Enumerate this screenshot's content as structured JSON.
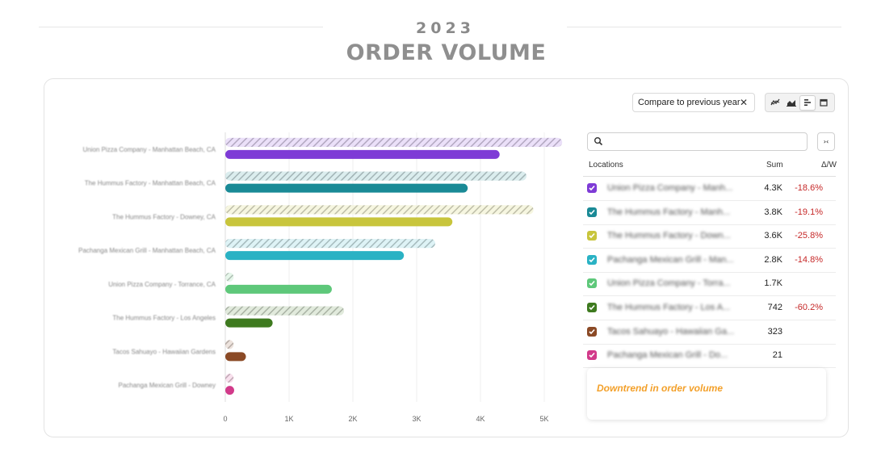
{
  "header": {
    "year": "2023",
    "title": "ORDER VOLUME"
  },
  "toolbar": {
    "compare_label": "Compare to previous year",
    "close_glyph": "✕",
    "view_buttons": [
      {
        "name": "line-chart-icon",
        "active": false
      },
      {
        "name": "area-chart-icon",
        "active": false
      },
      {
        "name": "bar-chart-icon",
        "active": true
      },
      {
        "name": "calendar-icon",
        "active": false
      }
    ]
  },
  "search": {
    "placeholder": ""
  },
  "table": {
    "headers": {
      "location": "Locations",
      "sum": "Sum",
      "delta": "Δ/W"
    },
    "rows": [
      {
        "name": "Union Pizza Company - Manh...",
        "sum": "4.3K",
        "delta": "-18.6%",
        "color": "#7e3bd6"
      },
      {
        "name": "The Hummus Factory - Manh...",
        "sum": "3.8K",
        "delta": "-19.1%",
        "color": "#1a8a96"
      },
      {
        "name": "The Hummus Factory - Down...",
        "sum": "3.6K",
        "delta": "-25.8%",
        "color": "#c8c53c"
      },
      {
        "name": "Pachanga Mexican Grill - Man...",
        "sum": "2.8K",
        "delta": "-14.8%",
        "color": "#2ab2c4"
      },
      {
        "name": "Union Pizza Company - Torra...",
        "sum": "1.7K",
        "delta": "",
        "color": "#5ec87a"
      },
      {
        "name": "The Hummus Factory - Los A...",
        "sum": "742",
        "delta": "-60.2%",
        "color": "#3e7a1f"
      },
      {
        "name": "Tacos Sahuayo - Hawaiian Ga...",
        "sum": "323",
        "delta": "",
        "color": "#8b4a26"
      },
      {
        "name": "Pachanga Mexican Grill - Do...",
        "sum": "21",
        "delta": "",
        "color": "#d23a8a"
      }
    ]
  },
  "note": {
    "text": "Downtrend in order volume"
  },
  "chart_data": {
    "type": "bar",
    "orientation": "horizontal",
    "categories": [
      "Union Pizza Company - Manhattan Beach, CA",
      "The Hummus Factory - Manhattan Beach, CA",
      "The Hummus Factory - Downey, CA",
      "Pachanga Mexican Grill - Manhattan Beach, CA",
      "Union Pizza Company - Torrance, CA",
      "The Hummus Factory - Los Angeles",
      "Tacos Sahuayo - Hawaiian Gardens",
      "Pachanga Mexican Grill - Downey"
    ],
    "series": [
      {
        "values": [
          4300,
          3800,
          3560,
          2800,
          1670,
          742,
          323,
          21
        ],
        "colors": [
          "#7e3bd6",
          "#1a8a96",
          "#c8c53c",
          "#2ab2c4",
          "#5ec87a",
          "#3e7a1f",
          "#8b4a26",
          "#d23a8a"
        ]
      },
      {
        "values": [
          5280,
          4720,
          4830,
          3290,
          130,
          1860,
          130,
          130
        ],
        "style": "hatched"
      }
    ],
    "xlim": [
      0,
      5000
    ],
    "xticks": [
      0,
      1000,
      2000,
      3000,
      4000,
      5000
    ],
    "xtick_labels": [
      "0",
      "1K",
      "2K",
      "3K",
      "4K",
      "5K"
    ],
    "grid": "vertical",
    "legend": "none"
  }
}
